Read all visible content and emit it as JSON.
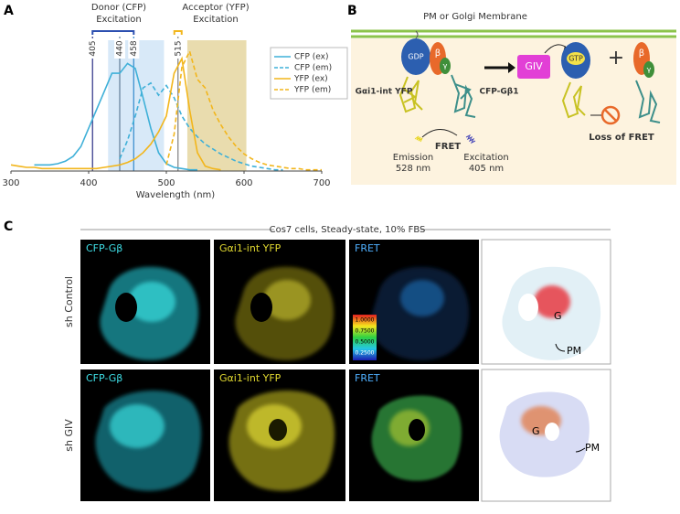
{
  "panel_labels": [
    "A",
    "B",
    "C"
  ],
  "chart_data": {
    "type": "line",
    "xlabel": "Wavelength (nm)",
    "x": [
      300,
      310,
      320,
      330,
      340,
      350,
      360,
      370,
      380,
      390,
      400,
      410,
      420,
      430,
      440,
      450,
      460,
      470,
      480,
      490,
      500,
      510,
      520,
      530,
      540,
      550,
      560,
      570,
      580,
      590,
      600,
      610,
      620,
      630,
      640,
      650,
      660,
      670,
      680,
      690,
      700
    ],
    "series": [
      {
        "name": "CFP (ex)",
        "color": "#3fb0d8",
        "style": "solid",
        "values": [
          null,
          null,
          null,
          0.05,
          0.05,
          0.05,
          0.06,
          0.08,
          0.12,
          0.2,
          0.35,
          0.5,
          0.65,
          0.8,
          0.8,
          0.88,
          0.84,
          0.6,
          0.35,
          0.15,
          0.06,
          0.03,
          0.02,
          0.01,
          0.01,
          null,
          null,
          null,
          null,
          null,
          null,
          null,
          null,
          null,
          null,
          null,
          null,
          null,
          null,
          null,
          null
        ]
      },
      {
        "name": "CFP (em)",
        "color": "#3fb0d8",
        "style": "dashed",
        "values": [
          null,
          null,
          null,
          null,
          null,
          null,
          null,
          null,
          null,
          null,
          null,
          null,
          null,
          null,
          0.1,
          0.25,
          0.45,
          0.68,
          0.72,
          0.62,
          0.7,
          0.6,
          0.45,
          0.35,
          0.28,
          0.22,
          0.18,
          0.14,
          0.11,
          0.08,
          0.06,
          0.04,
          0.03,
          0.02,
          0.01,
          0.01,
          null,
          null,
          null,
          null,
          null
        ]
      },
      {
        "name": "YFP (ex)",
        "color": "#f2b61c",
        "style": "solid",
        "values": [
          0.05,
          0.04,
          0.03,
          0.03,
          0.02,
          0.02,
          0.02,
          0.02,
          0.02,
          0.02,
          0.02,
          0.02,
          0.03,
          0.04,
          0.05,
          0.07,
          0.1,
          0.15,
          0.22,
          0.32,
          0.45,
          0.8,
          0.92,
          0.5,
          0.15,
          0.04,
          0.02,
          0.01,
          null,
          null,
          null,
          null,
          null,
          null,
          null,
          null,
          null,
          null,
          null,
          null,
          null
        ]
      },
      {
        "name": "YFP (em)",
        "color": "#f2b61c",
        "style": "dashed",
        "values": [
          null,
          null,
          null,
          null,
          null,
          null,
          null,
          null,
          null,
          null,
          null,
          null,
          null,
          null,
          null,
          null,
          null,
          null,
          null,
          null,
          0.05,
          0.3,
          0.85,
          0.98,
          0.75,
          0.68,
          0.5,
          0.38,
          0.28,
          0.2,
          0.14,
          0.1,
          0.07,
          0.05,
          0.04,
          0.03,
          0.02,
          0.02,
          0.01,
          0.01,
          0.01
        ]
      }
    ],
    "xlim": [
      300,
      700
    ],
    "xticks": [
      300,
      400,
      500,
      600,
      700
    ],
    "ylim": [
      0,
      1.1
    ],
    "excitation_lines": [
      405,
      440,
      458,
      515
    ],
    "shaded_ranges": [
      {
        "range": [
          425,
          497
        ],
        "color": "#d8e9f8"
      },
      {
        "range": [
          527,
          603
        ],
        "color": "#e9dcae"
      }
    ],
    "annotations": [
      "Donor (CFP)",
      "Excitation",
      "Acceptor (YFP)",
      "Excitation"
    ],
    "legend": "upper right"
  },
  "diagram": {
    "membrane": "PM or Golgi Membrane",
    "gdp": "GDP",
    "gtp": "GTP",
    "giv": "GIV",
    "beta": "β",
    "gamma": "γ",
    "galpha": "Gαi1-int YFP",
    "cfp": "CFP-Gβ1",
    "fret": "FRET",
    "emission": [
      "Emission",
      "528 nm"
    ],
    "excitation": [
      "Excitation",
      "405 nm"
    ],
    "loss": "Loss of FRET",
    "plus": "+"
  },
  "micrographs": {
    "title": "Cos7 cells, Steady-state, 10% FBS",
    "rows": [
      "sh Control",
      "sh GIV"
    ],
    "columns": [
      "CFP-Gβ",
      "Gαi1-int YFP",
      "FRET"
    ],
    "colorbar": [
      "1.0000",
      "0.7500",
      "0.5000",
      "0.2500"
    ],
    "annotations": [
      "G",
      "PM"
    ]
  }
}
